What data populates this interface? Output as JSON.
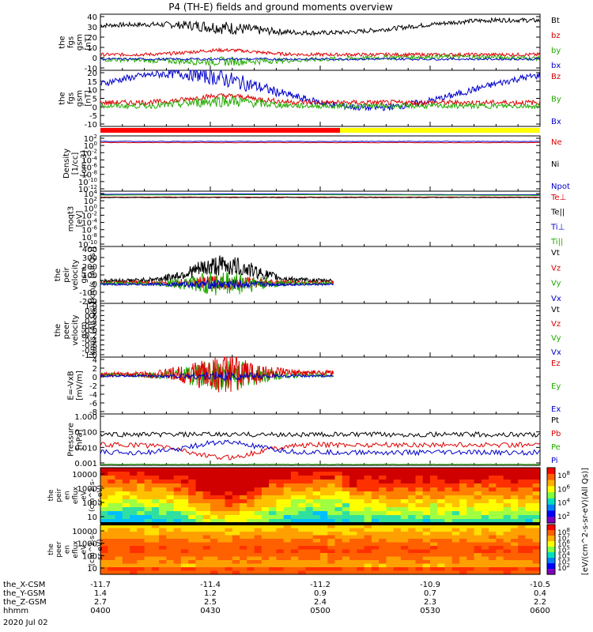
{
  "chart_data": {
    "type": "line",
    "title": "P4 (TH-E) fields and ground moments overview",
    "date": "2020 Jul 02",
    "time_range": [
      "0400",
      "0600"
    ],
    "orbit_table": {
      "row_labels": [
        "the_X-CSM",
        "the_Y-GSM",
        "the_Z-GSM",
        "hhmm"
      ],
      "columns": [
        {
          "x": "-11.7",
          "y": "1.4",
          "z": "2.7",
          "hhmm": "0400"
        },
        {
          "x": "-11.4",
          "y": "1.2",
          "z": "2.5",
          "hhmm": "0430"
        },
        {
          "x": "-11.2",
          "y": "0.9",
          "z": "2.4",
          "hhmm": "0500"
        },
        {
          "x": "-10.9",
          "y": "0.7",
          "z": "2.3",
          "hhmm": "0530"
        },
        {
          "x": "-10.5",
          "y": "0.4",
          "z": "2.2",
          "hhmm": "0600"
        }
      ]
    },
    "panels": [
      {
        "ylabel": [
          "the",
          "fgs",
          "gsm",
          "[nT]"
        ],
        "ticks": [
          "40",
          "30",
          "20",
          "10",
          "0",
          "-10"
        ],
        "ylim": [
          -10,
          40
        ],
        "legend": [
          {
            "label": "Bt",
            "color": "#000000"
          },
          {
            "label": "bz",
            "color": "#dd0000"
          },
          {
            "label": "by",
            "color": "#22aa00"
          },
          {
            "label": "bx",
            "color": "#0000cc"
          }
        ]
      },
      {
        "ylabel": [
          "the",
          "fgs",
          "gsm",
          "[nT]"
        ],
        "ticks": [
          "20",
          "15",
          "10",
          "5",
          "0",
          "-5",
          "-10"
        ],
        "ylim": [
          -13,
          20
        ],
        "legend": [
          {
            "label": "Bz",
            "color": "#dd0000"
          },
          {
            "label": "By",
            "color": "#22aa00"
          },
          {
            "label": "Bx",
            "color": "#0000cc"
          }
        ]
      },
      {
        "ylabel": [
          "Density",
          "[1/cc]",
          "[cm-3]"
        ],
        "ticks": [
          "10^2",
          "10^0",
          "10^-2",
          "10^-4",
          "10^-6",
          "10^-8",
          "10^-10",
          "10^-12"
        ],
        "ylim": [
          -12,
          2
        ],
        "legend": [
          {
            "label": "Ne",
            "color": "#dd0000"
          },
          {
            "label": "Ni",
            "color": "#000000"
          },
          {
            "label": "Npot",
            "color": "#0000cc"
          }
        ]
      },
      {
        "ylabel": [
          "moqt3",
          "[eV]"
        ],
        "ticks": [
          "10^4",
          "10^2",
          "10^0",
          "10^-2",
          "10^-4",
          "10^-6",
          "10^-8",
          "10^-10"
        ],
        "ylim": [
          -10,
          4
        ],
        "legend": [
          {
            "label": "Te⊥",
            "color": "#dd0000"
          },
          {
            "label": "Te||",
            "color": "#000000"
          },
          {
            "label": "Ti⊥",
            "color": "#0000cc"
          },
          {
            "label": "Ti||",
            "color": "#22aa00"
          }
        ]
      },
      {
        "ylabel": [
          "the",
          "peir",
          "velocity",
          "gsm",
          "[km/s (All Qs)]"
        ],
        "ticks": [
          "400",
          "300",
          "200",
          "100",
          "0",
          "-100",
          "-200"
        ],
        "ylim": [
          -200,
          400
        ],
        "legend": [
          {
            "label": "Vt",
            "color": "#000000"
          },
          {
            "label": "Vz",
            "color": "#dd0000"
          },
          {
            "label": "Vy",
            "color": "#22aa00"
          },
          {
            "label": "Vx",
            "color": "#0000cc"
          }
        ]
      },
      {
        "ylabel": [
          "the",
          "peer",
          "velocity",
          "gsm",
          "[km/s (All Qs)]"
        ],
        "ticks": [
          "1.0",
          "0.8",
          "0.6",
          "0.4",
          "0.2",
          "0.0",
          "-0.2",
          "-0.4",
          "-0.6",
          "-0.8",
          "-1.0"
        ],
        "ylim": [
          -1,
          1
        ],
        "legend": [
          {
            "label": "Vt",
            "color": "#000000"
          },
          {
            "label": "Vz",
            "color": "#dd0000"
          },
          {
            "label": "Vy",
            "color": "#22aa00"
          },
          {
            "label": "Vx",
            "color": "#0000cc"
          }
        ]
      },
      {
        "ylabel": [
          "E=-VxB",
          "[mV/m]"
        ],
        "ticks": [
          "4",
          "2",
          "0",
          "-2",
          "-4",
          "-6",
          "-8"
        ],
        "ylim": [
          -8,
          4
        ],
        "legend": [
          {
            "label": "Ez",
            "color": "#dd0000"
          },
          {
            "label": "Ey",
            "color": "#22aa00"
          },
          {
            "label": "Ex",
            "color": "#0000cc"
          }
        ]
      },
      {
        "ylabel": [
          "Pressure",
          "[nPa]"
        ],
        "ticks": [
          "1.000",
          "0.100",
          "0.010",
          "0.001"
        ],
        "ylim": [
          0.001,
          1
        ],
        "legend": [
          {
            "label": "Pt",
            "color": "#000000"
          },
          {
            "label": "Pb",
            "color": "#dd0000"
          },
          {
            "label": "Pe",
            "color": "#22aa00"
          },
          {
            "label": "Pi",
            "color": "#0000cc"
          }
        ]
      },
      {
        "ylabel": [
          "the",
          "peir",
          "en",
          "eflux",
          "eV",
          "(cm^2-s-",
          "sr-eV)"
        ],
        "ticks": [
          "10000",
          "1000",
          "100",
          "10"
        ],
        "spectrogram": true
      },
      {
        "ylabel": [
          "the",
          "peer",
          "en",
          "eflux",
          "eV",
          "(cm^2-s-",
          "sr-eV)"
        ],
        "ticks": [
          "10000",
          "1000",
          "100",
          "10"
        ],
        "spectrogram": true
      }
    ],
    "colorbar": {
      "label": "[eV/(cm^2-s-sr-eV)(All Qs)]",
      "ion_ticks": [
        "10^8",
        "10^6",
        "10^4",
        "10^2"
      ],
      "electron_ticks": [
        "10^8",
        "10^7",
        "10^6",
        "10^5",
        "10^4",
        "10^3",
        "10^2"
      ]
    }
  }
}
